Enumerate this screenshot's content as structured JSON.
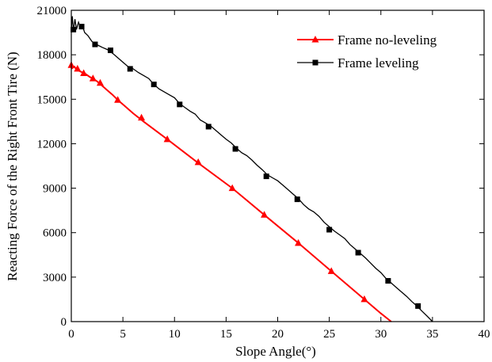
{
  "chart_data": {
    "type": "line",
    "title": "",
    "xlabel": "Slope Angle(°)",
    "ylabel": "Reacting Force of the Right Front Tire (N)",
    "xlim": [
      0,
      40
    ],
    "ylim": [
      0,
      21000
    ],
    "x_ticks": [
      "0",
      "5",
      "10",
      "15",
      "20",
      "25",
      "30",
      "35",
      "40"
    ],
    "y_ticks": [
      "0",
      "3000",
      "6000",
      "9000",
      "12000",
      "15000",
      "18000",
      "21000"
    ],
    "x_tick_values": [
      0,
      5,
      10,
      15,
      20,
      25,
      30,
      35,
      40
    ],
    "y_tick_values": [
      0,
      3000,
      6000,
      9000,
      12000,
      15000,
      18000,
      21000
    ],
    "grid": false,
    "legend_position": "top-right",
    "series": [
      {
        "name": "Frame no-leveling",
        "color": "#ff0000",
        "marker": "triangle",
        "line": [
          [
            0,
            17300
          ],
          [
            0.1,
            17100
          ],
          [
            0.3,
            17200
          ],
          [
            0.5,
            17000
          ],
          [
            0.8,
            16900
          ],
          [
            1.1,
            16800
          ],
          [
            1.4,
            16700
          ],
          [
            1.8,
            16500
          ],
          [
            2.1,
            16400
          ],
          [
            2.5,
            16200
          ],
          [
            3.0,
            15900
          ],
          [
            3.5,
            15600
          ],
          [
            4.0,
            15300
          ],
          [
            4.5,
            14950
          ],
          [
            5.0,
            14650
          ],
          [
            6.0,
            14050
          ],
          [
            7.0,
            13500
          ],
          [
            9.3,
            12300
          ],
          [
            12.3,
            10700
          ],
          [
            15.6,
            9000
          ],
          [
            18.7,
            7200
          ],
          [
            22.0,
            5300
          ],
          [
            25.2,
            3400
          ],
          [
            28.4,
            1500
          ],
          [
            30.0,
            550
          ],
          [
            31.0,
            0
          ]
        ],
        "markers": [
          [
            0,
            17300
          ],
          [
            0.6,
            17050
          ],
          [
            1.2,
            16750
          ],
          [
            2.1,
            16400
          ],
          [
            2.8,
            16100
          ],
          [
            4.5,
            14950
          ],
          [
            6.8,
            13750
          ],
          [
            9.3,
            12300
          ],
          [
            12.3,
            10750
          ],
          [
            15.6,
            9000
          ],
          [
            18.7,
            7200
          ],
          [
            22.0,
            5300
          ],
          [
            25.2,
            3400
          ],
          [
            28.4,
            1500
          ]
        ]
      },
      {
        "name": "Frame leveling",
        "color": "#000000",
        "marker": "square",
        "line": [
          [
            0,
            19700
          ],
          [
            0.1,
            20600
          ],
          [
            0.2,
            19600
          ],
          [
            0.35,
            20400
          ],
          [
            0.5,
            19700
          ],
          [
            0.7,
            20200
          ],
          [
            0.9,
            19800
          ],
          [
            1.1,
            19900
          ],
          [
            1.3,
            19500
          ],
          [
            1.6,
            19300
          ],
          [
            2.0,
            18900
          ],
          [
            2.4,
            18700
          ],
          [
            3.0,
            18500
          ],
          [
            3.5,
            18350
          ],
          [
            4.0,
            18100
          ],
          [
            4.5,
            17800
          ],
          [
            5.0,
            17500
          ],
          [
            5.5,
            17200
          ],
          [
            6.0,
            17050
          ],
          [
            6.5,
            16800
          ],
          [
            7.0,
            16600
          ],
          [
            7.5,
            16400
          ],
          [
            8.0,
            16000
          ],
          [
            8.5,
            15700
          ],
          [
            9.0,
            15500
          ],
          [
            9.5,
            15300
          ],
          [
            10.0,
            15100
          ],
          [
            10.5,
            14700
          ],
          [
            11.0,
            14450
          ],
          [
            11.5,
            14200
          ],
          [
            12.0,
            14000
          ],
          [
            12.5,
            13600
          ],
          [
            13.0,
            13400
          ],
          [
            13.5,
            13200
          ],
          [
            14.0,
            12900
          ],
          [
            14.5,
            12600
          ],
          [
            15.0,
            12300
          ],
          [
            15.5,
            12050
          ],
          [
            16.0,
            11700
          ],
          [
            16.5,
            11400
          ],
          [
            17.0,
            11200
          ],
          [
            17.5,
            10900
          ],
          [
            18.0,
            10550
          ],
          [
            18.5,
            10250
          ],
          [
            19.0,
            9900
          ],
          [
            19.5,
            9700
          ],
          [
            20.0,
            9500
          ],
          [
            20.5,
            9200
          ],
          [
            21.0,
            8900
          ],
          [
            21.5,
            8600
          ],
          [
            22.0,
            8300
          ],
          [
            22.5,
            7900
          ],
          [
            23.0,
            7600
          ],
          [
            23.5,
            7400
          ],
          [
            24.0,
            7100
          ],
          [
            24.5,
            6700
          ],
          [
            25.0,
            6400
          ],
          [
            25.5,
            6100
          ],
          [
            26.0,
            5850
          ],
          [
            26.5,
            5600
          ],
          [
            27.0,
            5200
          ],
          [
            27.5,
            4900
          ],
          [
            28.0,
            4600
          ],
          [
            28.5,
            4300
          ],
          [
            29.0,
            3950
          ],
          [
            29.5,
            3600
          ],
          [
            30.0,
            3300
          ],
          [
            30.5,
            2900
          ],
          [
            31.0,
            2600
          ],
          [
            31.5,
            2300
          ],
          [
            32.0,
            2000
          ],
          [
            32.5,
            1700
          ],
          [
            33.0,
            1350
          ],
          [
            33.5,
            1050
          ],
          [
            34.0,
            700
          ],
          [
            34.5,
            350
          ],
          [
            35.0,
            0
          ]
        ],
        "markers": [
          [
            0.2,
            19700
          ],
          [
            1.0,
            19900
          ],
          [
            2.3,
            18700
          ],
          [
            3.8,
            18300
          ],
          [
            5.7,
            17050
          ],
          [
            8.0,
            16000
          ],
          [
            10.5,
            14650
          ],
          [
            13.3,
            13150
          ],
          [
            15.9,
            11650
          ],
          [
            18.9,
            9800
          ],
          [
            21.9,
            8250
          ],
          [
            25.0,
            6200
          ],
          [
            27.8,
            4650
          ],
          [
            30.7,
            2750
          ],
          [
            33.6,
            1050
          ]
        ]
      }
    ]
  }
}
